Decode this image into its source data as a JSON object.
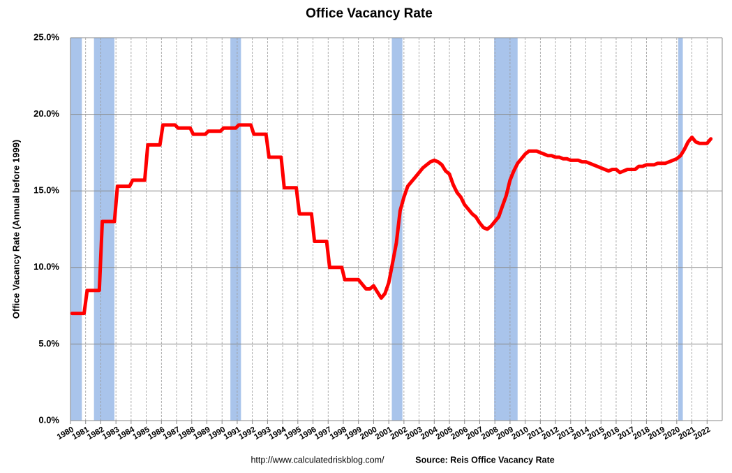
{
  "chart_data": {
    "type": "line",
    "title": "Office Vacancy Rate",
    "y_label": "Office Vacancy Rate (Annual before 1999)",
    "footer": "http://www.calculatedriskblog.com/",
    "source": "Source: Reis Office Vacancy Rate",
    "xlim": [
      1980,
      2023
    ],
    "ylim": [
      0,
      25
    ],
    "xticks": [
      1980,
      1981,
      1982,
      1983,
      1984,
      1985,
      1986,
      1987,
      1988,
      1989,
      1990,
      1991,
      1992,
      1993,
      1994,
      1995,
      1996,
      1997,
      1998,
      1999,
      2000,
      2001,
      2002,
      2003,
      2004,
      2005,
      2006,
      2007,
      2008,
      2009,
      2010,
      2011,
      2012,
      2013,
      2014,
      2015,
      2016,
      2017,
      2018,
      2019,
      2020,
      2021,
      2022
    ],
    "yticks": [
      {
        "value": 0,
        "label": "0.0%"
      },
      {
        "value": 5,
        "label": "5.0%"
      },
      {
        "value": 10,
        "label": "10.0%"
      },
      {
        "value": 15,
        "label": "15.0%"
      },
      {
        "value": 20,
        "label": "20.0%"
      },
      {
        "value": 25,
        "label": "25.0%"
      }
    ],
    "grid": true,
    "recessions": [
      [
        1980.0,
        1980.75
      ],
      [
        1981.55,
        1982.9
      ],
      [
        1990.55,
        1991.25
      ],
      [
        2001.2,
        2001.9
      ],
      [
        2007.95,
        2009.5
      ],
      [
        2020.1,
        2020.4
      ]
    ],
    "recession_color": "#a9c4eb",
    "x": [
      1980.1,
      1980.9,
      1981.1,
      1981.9,
      1982.1,
      1982.9,
      1983.1,
      1983.9,
      1984.1,
      1984.9,
      1985.1,
      1985.9,
      1986.1,
      1986.9,
      1987.1,
      1987.9,
      1988.1,
      1988.9,
      1989.1,
      1989.9,
      1990.1,
      1990.9,
      1991.1,
      1991.9,
      1992.1,
      1992.9,
      1993.1,
      1993.9,
      1994.1,
      1994.9,
      1995.1,
      1995.9,
      1996.1,
      1996.9,
      1997.1,
      1997.9,
      1998.1,
      1998.9,
      1999.0,
      1999.25,
      1999.5,
      1999.75,
      2000.0,
      2000.25,
      2000.5,
      2000.75,
      2001.0,
      2001.25,
      2001.5,
      2001.75,
      2002.0,
      2002.25,
      2002.5,
      2002.75,
      2003.0,
      2003.25,
      2003.5,
      2003.75,
      2004.0,
      2004.25,
      2004.5,
      2004.75,
      2005.0,
      2005.25,
      2005.5,
      2005.75,
      2006.0,
      2006.25,
      2006.5,
      2006.75,
      2007.0,
      2007.25,
      2007.5,
      2007.75,
      2008.0,
      2008.25,
      2008.5,
      2008.75,
      2009.0,
      2009.25,
      2009.5,
      2009.75,
      2010.0,
      2010.25,
      2010.5,
      2010.75,
      2011.0,
      2011.25,
      2011.5,
      2011.75,
      2012.0,
      2012.25,
      2012.5,
      2012.75,
      2013.0,
      2013.25,
      2013.5,
      2013.75,
      2014.0,
      2014.25,
      2014.5,
      2014.75,
      2015.0,
      2015.25,
      2015.5,
      2015.75,
      2016.0,
      2016.25,
      2016.5,
      2016.75,
      2017.0,
      2017.25,
      2017.5,
      2017.75,
      2018.0,
      2018.25,
      2018.5,
      2018.75,
      2019.0,
      2019.25,
      2019.5,
      2019.75,
      2020.0,
      2020.25,
      2020.5,
      2020.75,
      2021.0,
      2021.25,
      2021.5,
      2021.75,
      2022.0,
      2022.25
    ],
    "series": [
      {
        "name": "Office Vacancy Rate",
        "color": "#ff0000",
        "values": [
          7.0,
          7.0,
          8.5,
          8.5,
          13.0,
          13.0,
          15.3,
          15.3,
          15.7,
          15.7,
          18.0,
          18.0,
          19.3,
          19.3,
          19.1,
          19.1,
          18.7,
          18.7,
          18.9,
          18.9,
          19.1,
          19.1,
          19.3,
          19.3,
          18.7,
          18.7,
          17.2,
          17.2,
          15.2,
          15.2,
          13.5,
          13.5,
          11.7,
          11.7,
          10.0,
          10.0,
          9.2,
          9.2,
          9.2,
          8.9,
          8.6,
          8.6,
          8.8,
          8.4,
          8.0,
          8.3,
          9.0,
          10.3,
          11.6,
          13.7,
          14.6,
          15.3,
          15.6,
          15.9,
          16.2,
          16.5,
          16.7,
          16.9,
          17.0,
          16.9,
          16.7,
          16.3,
          16.1,
          15.4,
          14.9,
          14.6,
          14.1,
          13.8,
          13.5,
          13.3,
          12.9,
          12.6,
          12.5,
          12.7,
          13.0,
          13.3,
          14.0,
          14.7,
          15.7,
          16.3,
          16.8,
          17.1,
          17.4,
          17.6,
          17.6,
          17.6,
          17.5,
          17.4,
          17.3,
          17.3,
          17.2,
          17.2,
          17.1,
          17.1,
          17.0,
          17.0,
          17.0,
          16.9,
          16.9,
          16.8,
          16.7,
          16.6,
          16.5,
          16.4,
          16.3,
          16.4,
          16.4,
          16.2,
          16.3,
          16.4,
          16.4,
          16.4,
          16.6,
          16.6,
          16.7,
          16.7,
          16.7,
          16.8,
          16.8,
          16.8,
          16.9,
          17.0,
          17.1,
          17.3,
          17.7,
          18.2,
          18.5,
          18.2,
          18.1,
          18.1,
          18.1,
          18.4
        ]
      }
    ]
  }
}
